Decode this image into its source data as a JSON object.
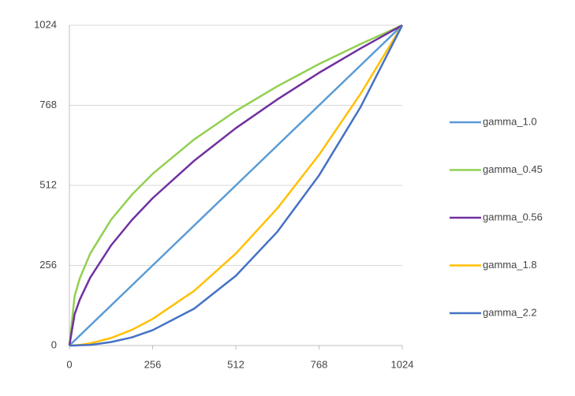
{
  "chart_data": {
    "type": "line",
    "x": [
      0,
      16,
      32,
      64,
      128,
      192,
      256,
      384,
      512,
      640,
      768,
      896,
      1024
    ],
    "xlim": [
      0,
      1024
    ],
    "xticks": [
      0,
      256,
      512,
      768,
      1024
    ],
    "ylim": [
      0,
      1024
    ],
    "yticks": [
      0,
      256,
      512,
      768,
      1024
    ],
    "grid": true,
    "legend": "right",
    "series": [
      {
        "name": "gamma_1.0",
        "color": "#5b9bd5",
        "values": [
          0,
          16,
          32,
          64,
          128,
          192,
          256,
          384,
          512,
          640,
          768,
          896,
          1024
        ]
      },
      {
        "name": "gamma_0.45",
        "color": "#92d050",
        "values": [
          0,
          158,
          215,
          294,
          402,
          482,
          549,
          659,
          750,
          829,
          900,
          964,
          1024
        ]
      },
      {
        "name": "gamma_0.56",
        "color": "#7030a0",
        "values": [
          0,
          100,
          147,
          217,
          320,
          401,
          471,
          591,
          695,
          787,
          872,
          950,
          1024
        ]
      },
      {
        "name": "gamma_1.8",
        "color": "#ffc000",
        "values": [
          0,
          1,
          2,
          7,
          24,
          50,
          85,
          175,
          294,
          439,
          610,
          805,
          1024
        ]
      },
      {
        "name": "gamma_2.2",
        "color": "#4472c4",
        "values": [
          0,
          0,
          1,
          2,
          11,
          26,
          49,
          118,
          223,
          364,
          544,
          763,
          1024
        ]
      }
    ]
  }
}
